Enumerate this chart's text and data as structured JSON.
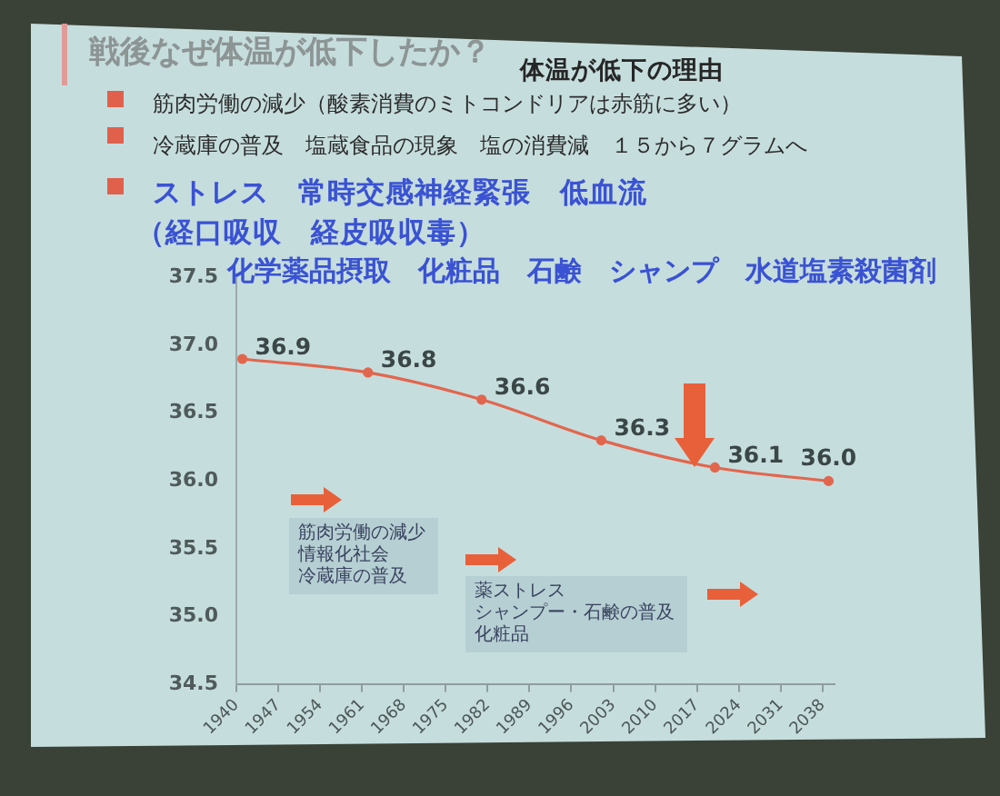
{
  "chart_data": {
    "type": "line",
    "title": "戦後なぜ体温が低下したか？",
    "subtitle": "体温が低下の理由",
    "annotations": [
      "筋肉労働の減少（酸素消費のミトコンドリアは赤筋に多い）",
      "冷蔵庫の普及　塩蔵食品の現象　塩の消費減　１５から７グラムへ",
      "ストレス　常時交感神経緊張　低血流",
      "（経口吸収　経皮吸収毒）",
      "化学薬品摂取　化粧品　石鹸　シャンプ　水道塩素殺菌剤",
      "筋肉労働の減少",
      "情報化社会",
      "冷蔵庫の普及",
      "薬ストレス",
      "シャンプー・石鹸の普及",
      "化粧品"
    ],
    "x": [
      1941,
      1962,
      1981,
      2001,
      2020,
      2039
    ],
    "values": [
      36.9,
      36.8,
      36.6,
      36.3,
      36.1,
      36.0
    ],
    "value_labels": [
      "36.9",
      "36.8",
      "36.6",
      "36.3",
      "36.1",
      "36.0"
    ],
    "color": "#e2664e",
    "marker": "circle",
    "xlim": [
      1940,
      2040
    ],
    "xticks": [
      1940,
      1947,
      1954,
      1961,
      1968,
      1975,
      1982,
      1989,
      1996,
      2003,
      2010,
      2017,
      2024,
      2031,
      2038
    ],
    "ylim": [
      34.5,
      37.5
    ],
    "yticks": [
      34.5,
      {
        "value": 35,
        "label": "35.0"
      },
      35.5,
      {
        "value": 36,
        "label": "36.0"
      },
      36.5,
      {
        "value": 37,
        "label": "37.0"
      },
      37.5
    ]
  }
}
